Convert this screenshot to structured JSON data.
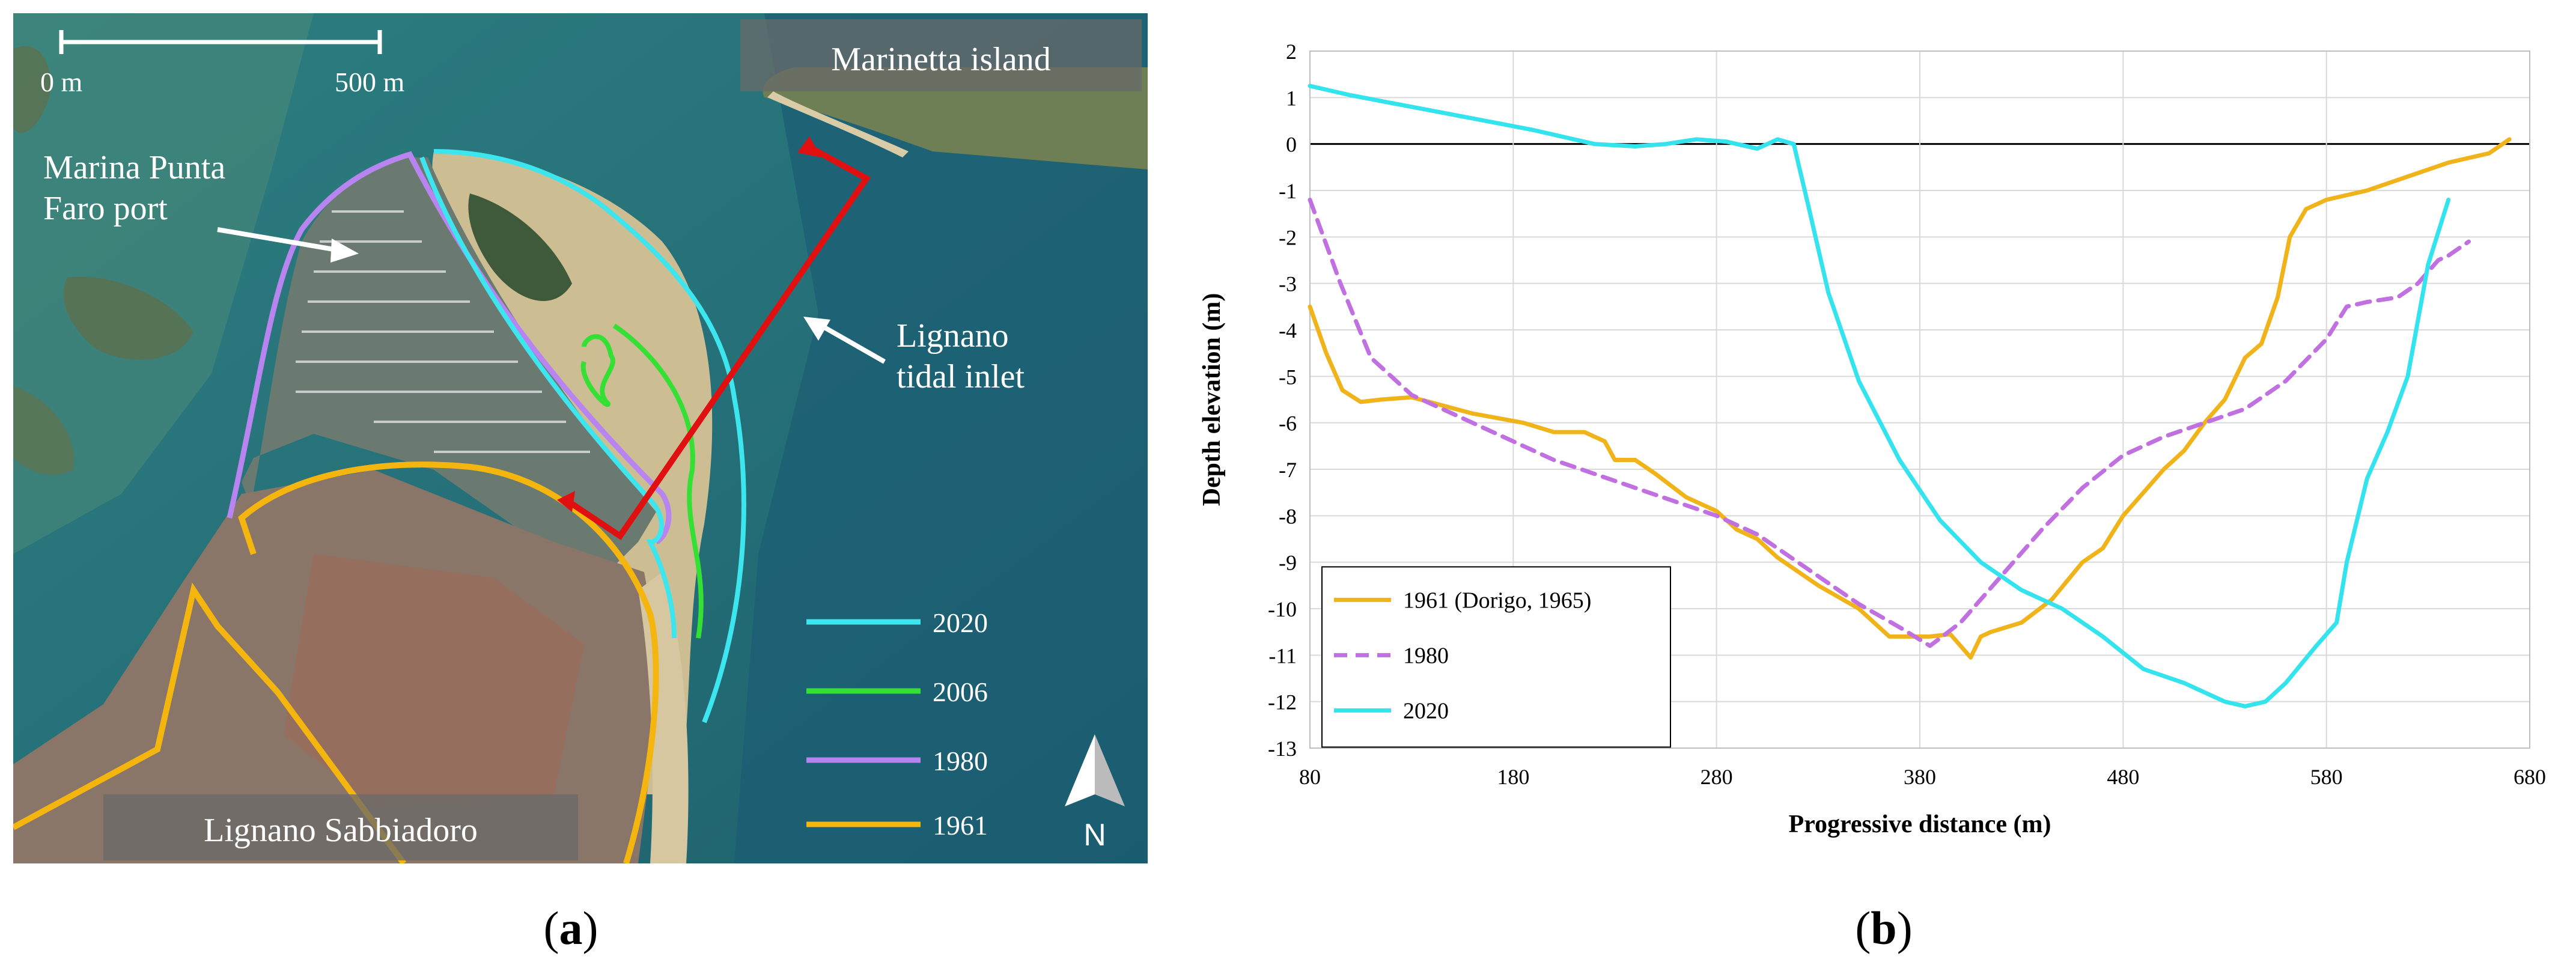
{
  "panel_a": {
    "scale_start": "0 m",
    "scale_end": "500 m",
    "label_marinetta": "Marinetta island",
    "label_marina": "Marina Punta\nFaro port",
    "label_inlet": "Lignano\ntidal inlet",
    "label_town": "Lignano Sabbiadoro",
    "north": "N",
    "legend": [
      {
        "year": "2020",
        "color": "#3de6ee"
      },
      {
        "year": "2006",
        "color": "#35e035"
      },
      {
        "year": "1980",
        "color": "#b784f0"
      },
      {
        "year": "1961",
        "color": "#f5b50f"
      }
    ],
    "profile_color": "#e01010"
  },
  "caption_a": "a",
  "caption_b": "b",
  "chart_data": {
    "type": "line",
    "title": "",
    "xlabel": "Progressive distance (m)",
    "ylabel": "Depth elevation (m)",
    "xlim": [
      80,
      680
    ],
    "ylim": [
      -13,
      2
    ],
    "xticks": [
      80,
      180,
      280,
      380,
      480,
      580,
      680
    ],
    "yticks": [
      2,
      1,
      0,
      -1,
      -2,
      -3,
      -4,
      -5,
      -6,
      -7,
      -8,
      -9,
      -10,
      -11,
      -12,
      -13
    ],
    "grid": true,
    "legend_position": "bottom-left",
    "series": [
      {
        "name": "1961 (Dorigo, 1965)",
        "color": "#f0b31a",
        "dash": "solid",
        "x": [
          80,
          88,
          96,
          105,
          115,
          130,
          160,
          185,
          200,
          215,
          225,
          230,
          240,
          250,
          265,
          280,
          290,
          300,
          310,
          330,
          350,
          365,
          375,
          385,
          395,
          405,
          410,
          415,
          430,
          445,
          460,
          470,
          480,
          490,
          500,
          510,
          520,
          530,
          540,
          548,
          556,
          562,
          570,
          580,
          600,
          620,
          640,
          660,
          670
        ],
        "y": [
          -3.5,
          -4.5,
          -5.3,
          -5.55,
          -5.5,
          -5.45,
          -5.8,
          -6.0,
          -6.2,
          -6.2,
          -6.4,
          -6.8,
          -6.8,
          -7.1,
          -7.6,
          -7.9,
          -8.3,
          -8.5,
          -8.9,
          -9.5,
          -10.0,
          -10.6,
          -10.6,
          -10.6,
          -10.55,
          -11.05,
          -10.6,
          -10.5,
          -10.3,
          -9.8,
          -9.0,
          -8.7,
          -8.0,
          -7.5,
          -7.0,
          -6.6,
          -6.0,
          -5.5,
          -4.6,
          -4.3,
          -3.3,
          -2.0,
          -1.4,
          -1.2,
          -1.0,
          -0.7,
          -0.4,
          -0.2,
          0.1
        ]
      },
      {
        "name": "1980",
        "color": "#c070e0",
        "dash": "dashed",
        "x": [
          80,
          95,
          110,
          130,
          160,
          200,
          240,
          280,
          300,
          320,
          350,
          370,
          385,
          400,
          420,
          440,
          460,
          480,
          500,
          520,
          540,
          560,
          580,
          590,
          600,
          615,
          625,
          635,
          640,
          650
        ],
        "y": [
          -1.2,
          -3.0,
          -4.6,
          -5.4,
          -6.0,
          -6.8,
          -7.4,
          -8.0,
          -8.4,
          -9.0,
          -9.9,
          -10.4,
          -10.8,
          -10.3,
          -9.3,
          -8.3,
          -7.4,
          -6.7,
          -6.3,
          -6.0,
          -5.7,
          -5.1,
          -4.2,
          -3.5,
          -3.4,
          -3.3,
          -3.0,
          -2.5,
          -2.4,
          -2.1
        ]
      },
      {
        "name": "2020",
        "color": "#33e3ee",
        "dash": "solid",
        "x": [
          80,
          100,
          130,
          160,
          190,
          220,
          240,
          255,
          270,
          285,
          300,
          310,
          318,
          325,
          335,
          350,
          370,
          390,
          410,
          430,
          450,
          470,
          490,
          510,
          530,
          540,
          550,
          560,
          575,
          585,
          590,
          600,
          610,
          620,
          630,
          640
        ],
        "y": [
          1.25,
          1.05,
          0.8,
          0.55,
          0.3,
          0.0,
          -0.05,
          0.0,
          0.1,
          0.05,
          -0.1,
          0.1,
          0.0,
          -1.3,
          -3.2,
          -5.1,
          -6.8,
          -8.1,
          -9.0,
          -9.6,
          -10.0,
          -10.6,
          -11.3,
          -11.6,
          -12.0,
          -12.1,
          -12.0,
          -11.6,
          -10.8,
          -10.3,
          -9.0,
          -7.2,
          -6.2,
          -5.0,
          -2.6,
          -1.2
        ]
      }
    ]
  }
}
